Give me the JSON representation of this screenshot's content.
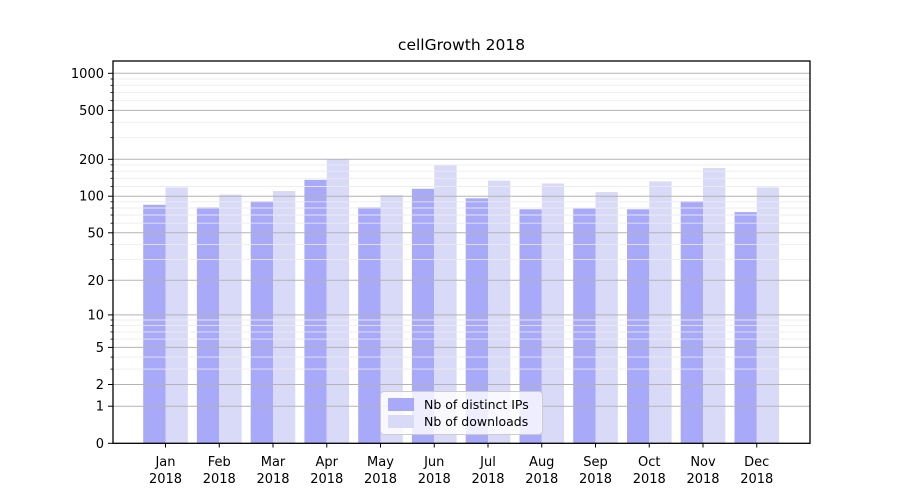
{
  "chart_data": {
    "type": "bar",
    "title": "cellGrowth 2018",
    "categories": [
      "Jan",
      "Feb",
      "Mar",
      "Apr",
      "May",
      "Jun",
      "Jul",
      "Aug",
      "Sep",
      "Oct",
      "Nov",
      "Dec"
    ],
    "category_year": "2018",
    "series": [
      {
        "name": "Nb of distinct IPs",
        "color": "#a9a9f9",
        "values": [
          85,
          81,
          91,
          136,
          81,
          115,
          96,
          78,
          79,
          78,
          91,
          74
        ]
      },
      {
        "name": "Nb of downloads",
        "color": "#d9d9f8",
        "values": [
          118,
          103,
          110,
          200,
          102,
          179,
          134,
          127,
          108,
          132,
          170,
          118
        ]
      }
    ],
    "xlabel": "",
    "ylabel": "",
    "yscale": "log1p",
    "ylim": [
      0,
      1200
    ],
    "yticks": [
      0,
      1,
      2,
      5,
      10,
      20,
      50,
      100,
      200,
      500,
      1000
    ],
    "yticks_minor": [
      3,
      4,
      6,
      7,
      8,
      9,
      30,
      40,
      60,
      70,
      80,
      90,
      120,
      140,
      160,
      180,
      300,
      400,
      600,
      700,
      800,
      900
    ],
    "grid": "horizontal major and minor",
    "legend_position": "lower center"
  },
  "colors": {
    "background": "#ffffff",
    "major_grid": "#b3b3b3",
    "minor_grid": "#ececec",
    "spine": "#000000",
    "tick_label": "#000000"
  }
}
